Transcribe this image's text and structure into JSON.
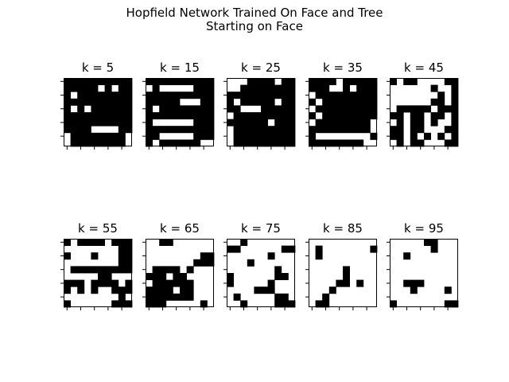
{
  "figure": {
    "title_line1": "Hopfield Network Trained On Face and Tree",
    "title_line2": "Starting on Face"
  },
  "colors": {
    "on": "#000000",
    "off": "#ffffff",
    "axes": "#000000"
  },
  "chart_data": {
    "type": "heatmap",
    "title": "Hopfield Network Trained On Face and Tree\nStarting on Face",
    "grid_size": [
      10,
      10
    ],
    "values_legend": "1 = black cell, 0 = white cell",
    "panels": [
      {
        "title": "k = 5",
        "cells": [
          "1111111111",
          "1111101011",
          "1011111111",
          "1111111111",
          "1010111111",
          "1111111111",
          "1111111111",
          "1111000011",
          "0111111110",
          "0111111110"
        ]
      },
      {
        "title": "k = 15",
        "cells": [
          "1111111111",
          "0100000111",
          "1111111111",
          "1111100011",
          "1011111111",
          "1111111111",
          "1000000111",
          "1111111111",
          "1100000111",
          "1011111100"
        ]
      },
      {
        "title": "k = 25",
        "cells": [
          "0001111011",
          "0011111111",
          "1111111111",
          "1011111011",
          "1100011111",
          "0111111111",
          "1111110111",
          "0111111111",
          "0111111111",
          "0111111111"
        ]
      },
      {
        "title": "k = 35",
        "cells": [
          "1111011111",
          "1110010111",
          "0111111111",
          "1011111111",
          "0111111111",
          "1011111111",
          "0111111110",
          "1111111110",
          "1000000001",
          "1111111100"
        ]
      },
      {
        "title": "k = 45",
        "cells": [
          "1011000011",
          "0000001001",
          "0000000101",
          "0000001101",
          "0111110111",
          "1101101101",
          "0101101001",
          "1101100011",
          "1101010101",
          "0101100011"
        ]
      },
      {
        "title": "k = 55",
        "cells": [
          "1011110111",
          "0000000011",
          "1000100011",
          "0000000011",
          "0111111111",
          "0000011000",
          "1110111101",
          "1010100111",
          "0000000010",
          "1000000111"
        ]
      },
      {
        "title": "k = 65",
        "cells": [
          "0011000000",
          "0000000000",
          "0000000011",
          "0000000111",
          "0111101000",
          "1110110000",
          "0111111000",
          "1111011000",
          "1111111000",
          "1110000010"
        ]
      },
      {
        "title": "k = 75",
        "cells": [
          "0010000000",
          "1100000011",
          "0000001000",
          "0001000000",
          "0000000100",
          "1000000110",
          "1000001000",
          "0000111000",
          "0100000110",
          "0010000111"
        ]
      },
      {
        "title": "k = 85",
        "cells": [
          "0000000000",
          "0100000001",
          "0100000000",
          "0000000000",
          "0000010000",
          "0000010000",
          "0000110100",
          "0001000000",
          "0010000000",
          "0110000000"
        ]
      },
      {
        "title": "k = 95",
        "cells": [
          "0000011000",
          "0000001000",
          "0010000000",
          "0000000000",
          "0000000000",
          "0000000000",
          "0011100000",
          "0001000010",
          "0000000000",
          "1000000011"
        ]
      }
    ]
  }
}
